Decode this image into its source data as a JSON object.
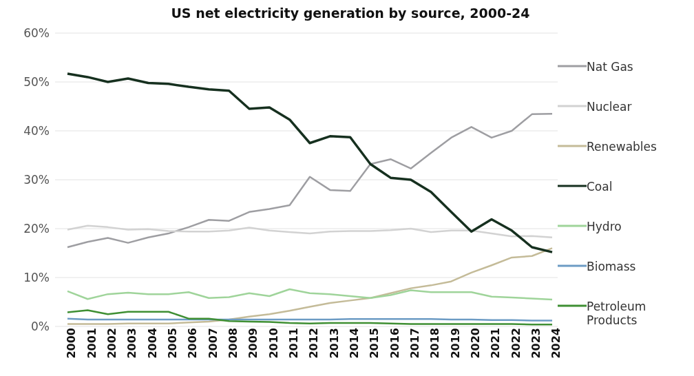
{
  "chart_data": {
    "type": "line",
    "title": "US net electricity generation by source, 2000-24",
    "categories": [
      "2000",
      "2001",
      "2002",
      "2003",
      "2004",
      "2005",
      "2006",
      "2007",
      "2008",
      "2009",
      "2010",
      "2011",
      "2012",
      "2013",
      "2014",
      "2015",
      "2016",
      "2017",
      "2018",
      "2019",
      "2020",
      "2021",
      "2022",
      "2023",
      "2024"
    ],
    "series": [
      {
        "name": "Nat Gas",
        "color": "#9e9ea2",
        "values": [
          16.2,
          17.3,
          18.1,
          17.1,
          18.2,
          19,
          20.3,
          21.8,
          21.6,
          23.4,
          24,
          24.8,
          30.6,
          27.9,
          27.7,
          33.2,
          34.2,
          32.3,
          35.5,
          38.6,
          40.8,
          38.6,
          40,
          43.4,
          43.5
        ]
      },
      {
        "name": "Nuclear",
        "color": "#d2d2d2",
        "values": [
          19.8,
          20.6,
          20.3,
          19.8,
          19.9,
          19.5,
          19.4,
          19.4,
          19.6,
          20.2,
          19.6,
          19.3,
          19,
          19.4,
          19.5,
          19.5,
          19.7,
          20,
          19.3,
          19.6,
          19.6,
          19,
          18.4,
          18.5,
          18.2
        ]
      },
      {
        "name": "Renewables",
        "color": "#c4bb98",
        "values": [
          0.5,
          0.5,
          0.5,
          0.6,
          0.6,
          0.6,
          0.8,
          1,
          1.4,
          2,
          2.5,
          3.2,
          4,
          4.8,
          5.3,
          5.8,
          6.8,
          7.8,
          8.4,
          9.2,
          11,
          12.5,
          14.1,
          14.4,
          16
        ]
      },
      {
        "name": "Coal",
        "color": "#16301f",
        "values": [
          51.7,
          51,
          50,
          50.7,
          49.8,
          49.6,
          49,
          48.5,
          48.2,
          44.5,
          44.8,
          42.3,
          37.5,
          38.9,
          38.7,
          33.2,
          30.4,
          30,
          27.5,
          23.4,
          19.4,
          21.9,
          19.6,
          16.2,
          15.2
        ]
      },
      {
        "name": "Hydro",
        "color": "#9fd49a",
        "values": [
          7.2,
          5.6,
          6.6,
          6.9,
          6.6,
          6.6,
          7,
          5.8,
          6,
          6.8,
          6.2,
          7.6,
          6.8,
          6.6,
          6.2,
          5.8,
          6.4,
          7.4,
          7,
          7,
          7,
          6.1,
          5.9,
          5.7,
          5.5
        ]
      },
      {
        "name": "Biomass",
        "color": "#6c9bc4",
        "values": [
          1.6,
          1.4,
          1.4,
          1.4,
          1.4,
          1.4,
          1.4,
          1.4,
          1.4,
          1.4,
          1.4,
          1.4,
          1.4,
          1.4,
          1.5,
          1.5,
          1.5,
          1.5,
          1.5,
          1.4,
          1.4,
          1.3,
          1.3,
          1.2,
          1.2
        ]
      },
      {
        "name": "Petroleum Products",
        "color": "#3f8f33",
        "values": [
          2.9,
          3.3,
          2.5,
          3.0,
          3.0,
          3.0,
          1.6,
          1.6,
          1.1,
          1.0,
          0.9,
          0.7,
          0.6,
          0.7,
          0.7,
          0.7,
          0.6,
          0.5,
          0.5,
          0.5,
          0.5,
          0.5,
          0.5,
          0.4,
          0.4
        ]
      }
    ],
    "ylim": [
      0,
      60
    ],
    "yticks": [
      {
        "value": 0,
        "label": "0%"
      },
      {
        "value": 10,
        "label": "10%"
      },
      {
        "value": 20,
        "label": "20%"
      },
      {
        "value": 30,
        "label": "30%"
      },
      {
        "value": 40,
        "label": "40%"
      },
      {
        "value": 50,
        "label": "50%"
      },
      {
        "value": 60,
        "label": "60%"
      }
    ],
    "grid": "y",
    "legend": "right",
    "marker": "none",
    "line_style": "solid"
  }
}
